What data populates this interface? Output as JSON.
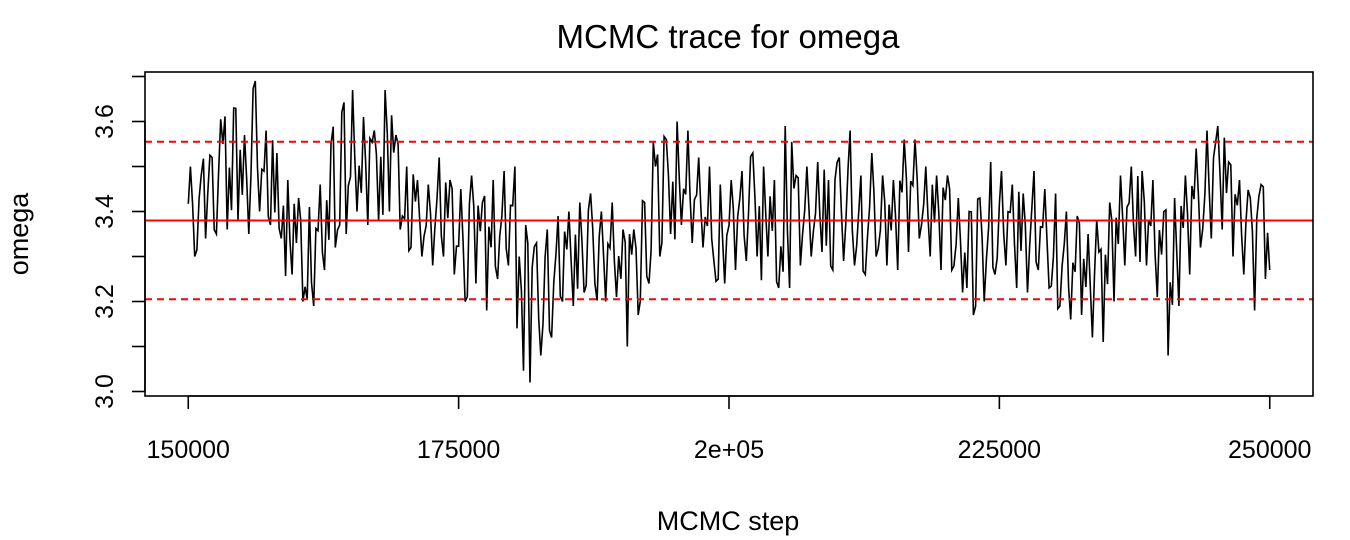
{
  "chart_data": {
    "type": "line",
    "title": "MCMC trace for omega",
    "xlabel": "MCMC step",
    "ylabel": "omega",
    "xlim": [
      146000,
      254000
    ],
    "ylim": [
      2.99,
      3.71
    ],
    "x_ticks": [
      150000,
      175000,
      200000,
      225000,
      250000
    ],
    "x_tick_labels": [
      "150000",
      "175000",
      "2e+05",
      "225000",
      "250000"
    ],
    "y_ticks": [
      3.0,
      3.2,
      3.4,
      3.6
    ],
    "y_tick_labels": [
      "3.0",
      "3.2",
      "3.4",
      "3.6"
    ],
    "grid": false,
    "colors": {
      "trace": "#000000",
      "reference": "#ff0000"
    },
    "reference_lines": [
      {
        "y": 3.38,
        "style": "solid"
      },
      {
        "y": 3.555,
        "style": "dashed"
      },
      {
        "y": 3.205,
        "style": "dashed"
      }
    ],
    "series": [
      {
        "style": "trace",
        "x": [
          150000,
          151000,
          152000,
          153000,
          154000,
          155000,
          156000,
          157000,
          158000,
          159000,
          160000,
          161000,
          162000,
          163000,
          164000,
          165000,
          166000,
          167000,
          168000,
          169000,
          170000,
          171000,
          172000,
          173000,
          174000,
          175000,
          176000,
          177000,
          178000,
          179000,
          180000,
          181000,
          182000,
          183000,
          184000,
          185000,
          186000,
          187000,
          188000,
          189000,
          190000,
          191000,
          192000,
          193000,
          194000,
          195000,
          196000,
          197000,
          198000,
          199000,
          200000,
          201000,
          202000,
          203000,
          204000,
          205000,
          206000,
          207000,
          208000,
          209000,
          210000,
          211000,
          212000,
          213000,
          214000,
          215000,
          216000,
          217000,
          218000,
          219000,
          220000,
          221000,
          222000,
          223000,
          224000,
          225000,
          226000,
          227000,
          228000,
          229000,
          230000,
          231000,
          232000,
          233000,
          234000,
          235000,
          236000,
          237000,
          238000,
          239000,
          240000,
          241000,
          242000,
          243000,
          244000,
          245000,
          246000,
          247000,
          248000,
          249000,
          250000
        ],
        "center": [
          3.42,
          3.41,
          3.43,
          3.45,
          3.47,
          3.46,
          3.5,
          3.48,
          3.44,
          3.38,
          3.33,
          3.32,
          3.37,
          3.43,
          3.47,
          3.52,
          3.5,
          3.49,
          3.53,
          3.47,
          3.42,
          3.39,
          3.37,
          3.41,
          3.38,
          3.35,
          3.36,
          3.32,
          3.36,
          3.39,
          3.41,
          3.28,
          3.25,
          3.27,
          3.3,
          3.31,
          3.33,
          3.35,
          3.31,
          3.32,
          3.28,
          3.27,
          3.33,
          3.4,
          3.45,
          3.47,
          3.44,
          3.42,
          3.39,
          3.36,
          3.37,
          3.39,
          3.42,
          3.41,
          3.36,
          3.35,
          3.39,
          3.4,
          3.41,
          3.38,
          3.4,
          3.39,
          3.37,
          3.41,
          3.38,
          3.38,
          3.43,
          3.45,
          3.41,
          3.38,
          3.39,
          3.34,
          3.3,
          3.33,
          3.37,
          3.39,
          3.37,
          3.35,
          3.38,
          3.35,
          3.33,
          3.31,
          3.3,
          3.25,
          3.22,
          3.32,
          3.38,
          3.41,
          3.39,
          3.35,
          3.27,
          3.31,
          3.37,
          3.43,
          3.45,
          3.47,
          3.41,
          3.38,
          3.34,
          3.37,
          3.39
        ],
        "upper": [
          3.5,
          3.48,
          3.52,
          3.55,
          3.63,
          3.57,
          3.69,
          3.58,
          3.53,
          3.47,
          3.43,
          3.41,
          3.46,
          3.55,
          3.62,
          3.67,
          3.61,
          3.58,
          3.67,
          3.57,
          3.5,
          3.47,
          3.46,
          3.52,
          3.47,
          3.45,
          3.48,
          3.42,
          3.47,
          3.49,
          3.5,
          3.37,
          3.33,
          3.36,
          3.39,
          3.4,
          3.42,
          3.44,
          3.4,
          3.42,
          3.36,
          3.36,
          3.42,
          3.5,
          3.56,
          3.6,
          3.58,
          3.52,
          3.5,
          3.46,
          3.47,
          3.49,
          3.53,
          3.5,
          3.47,
          3.59,
          3.48,
          3.5,
          3.51,
          3.47,
          3.52,
          3.58,
          3.48,
          3.53,
          3.48,
          3.47,
          3.56,
          3.56,
          3.5,
          3.48,
          3.48,
          3.43,
          3.4,
          3.43,
          3.51,
          3.49,
          3.46,
          3.44,
          3.49,
          3.45,
          3.44,
          3.4,
          3.39,
          3.35,
          3.31,
          3.42,
          3.48,
          3.5,
          3.49,
          3.47,
          3.4,
          3.43,
          3.48,
          3.54,
          3.58,
          3.59,
          3.51,
          3.47,
          3.43,
          3.46,
          3.51
        ],
        "lower": [
          3.3,
          3.34,
          3.35,
          3.36,
          3.38,
          3.35,
          3.4,
          3.37,
          3.34,
          3.26,
          3.2,
          3.19,
          3.27,
          3.32,
          3.35,
          3.4,
          3.37,
          3.38,
          3.4,
          3.36,
          3.32,
          3.3,
          3.28,
          3.3,
          3.26,
          3.2,
          3.24,
          3.18,
          3.25,
          3.28,
          3.3,
          3.02,
          3.08,
          3.12,
          3.2,
          3.19,
          3.22,
          3.24,
          3.2,
          3.21,
          3.1,
          3.17,
          3.24,
          3.3,
          3.35,
          3.37,
          3.33,
          3.32,
          3.29,
          3.24,
          3.27,
          3.29,
          3.3,
          3.3,
          3.23,
          3.23,
          3.28,
          3.3,
          3.31,
          3.27,
          3.29,
          3.28,
          3.26,
          3.3,
          3.28,
          3.27,
          3.31,
          3.34,
          3.3,
          3.27,
          3.27,
          3.22,
          3.17,
          3.2,
          3.26,
          3.28,
          3.23,
          3.22,
          3.27,
          3.23,
          3.19,
          3.16,
          3.17,
          3.12,
          3.11,
          3.2,
          3.28,
          3.3,
          3.28,
          3.21,
          3.08,
          3.19,
          3.26,
          3.32,
          3.34,
          3.36,
          3.3,
          3.26,
          3.18,
          3.25,
          3.27
        ]
      }
    ]
  }
}
